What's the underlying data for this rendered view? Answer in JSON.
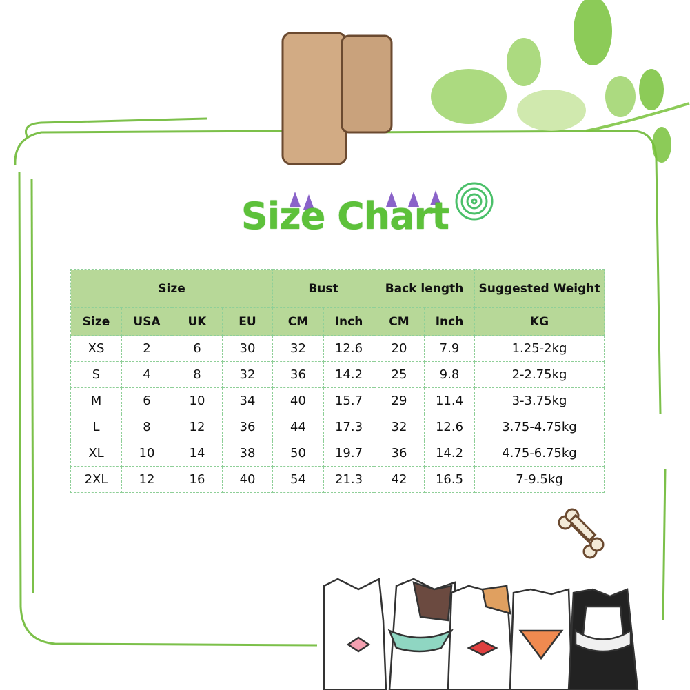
{
  "title": "Size Chart",
  "colors": {
    "title": "#5dc13a",
    "header_bg": "#b7d898",
    "frame": "#7cc04a",
    "clothespin": "#d2ab84"
  },
  "table": {
    "group_headers": [
      "Size",
      "Bust",
      "Back length",
      "Suggested Weight"
    ],
    "sub_headers": [
      "Size",
      "USA",
      "UK",
      "EU",
      "CM",
      "Inch",
      "CM",
      "Inch",
      "KG"
    ],
    "rows": [
      [
        "XS",
        "2",
        "6",
        "30",
        "32",
        "12.6",
        "20",
        "7.9",
        "1.25-2kg"
      ],
      [
        "S",
        "4",
        "8",
        "32",
        "36",
        "14.2",
        "25",
        "9.8",
        "2-2.75kg"
      ],
      [
        "M",
        "6",
        "10",
        "34",
        "40",
        "15.7",
        "29",
        "11.4",
        "3-3.75kg"
      ],
      [
        "L",
        "8",
        "12",
        "36",
        "44",
        "17.3",
        "32",
        "12.6",
        "3.75-4.75kg"
      ],
      [
        "XL",
        "10",
        "14",
        "38",
        "50",
        "19.7",
        "36",
        "14.2",
        "4.75-6.75kg"
      ],
      [
        "2XL",
        "12",
        "16",
        "40",
        "54",
        "21.3",
        "42",
        "16.5",
        "7-9.5kg"
      ]
    ]
  }
}
